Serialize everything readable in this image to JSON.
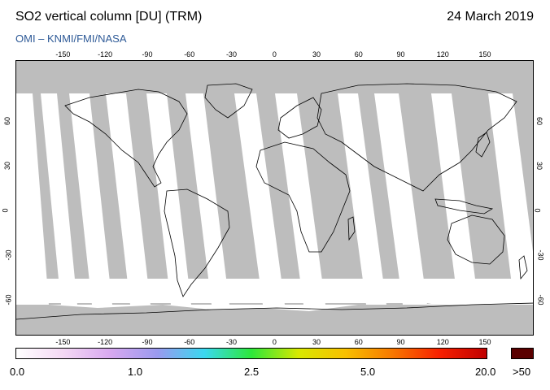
{
  "header": {
    "title": "SO2 vertical column [DU] (TRM)",
    "date": "24 March 2019",
    "credit": "OMI  –  KNMI/FMI/NASA"
  },
  "map": {
    "longitude_ticks": [
      "-150",
      "-120",
      "-90",
      "-60",
      "-30",
      "0",
      "30",
      "60",
      "90",
      "120",
      "150"
    ],
    "latitude_ticks": [
      "60",
      "30",
      "0",
      "-30",
      "-60"
    ],
    "colors": {
      "background_no_data": "#bdbdbd",
      "orbit_swath": "#ffffff",
      "coastline": "#000000"
    }
  },
  "colorbar": {
    "labels": [
      "0.0",
      "1.0",
      "2.5",
      "5.0",
      "20.0"
    ],
    "overflow_label": ">50",
    "overflow_color": "#5a0000",
    "gradient_colors": [
      "#ffffff",
      "#f4d8f4",
      "#d8a8f0",
      "#9a9af0",
      "#3ad8f0",
      "#2ce83a",
      "#d8e800",
      "#f8c000",
      "#f87800",
      "#f82000",
      "#c00000"
    ]
  }
}
